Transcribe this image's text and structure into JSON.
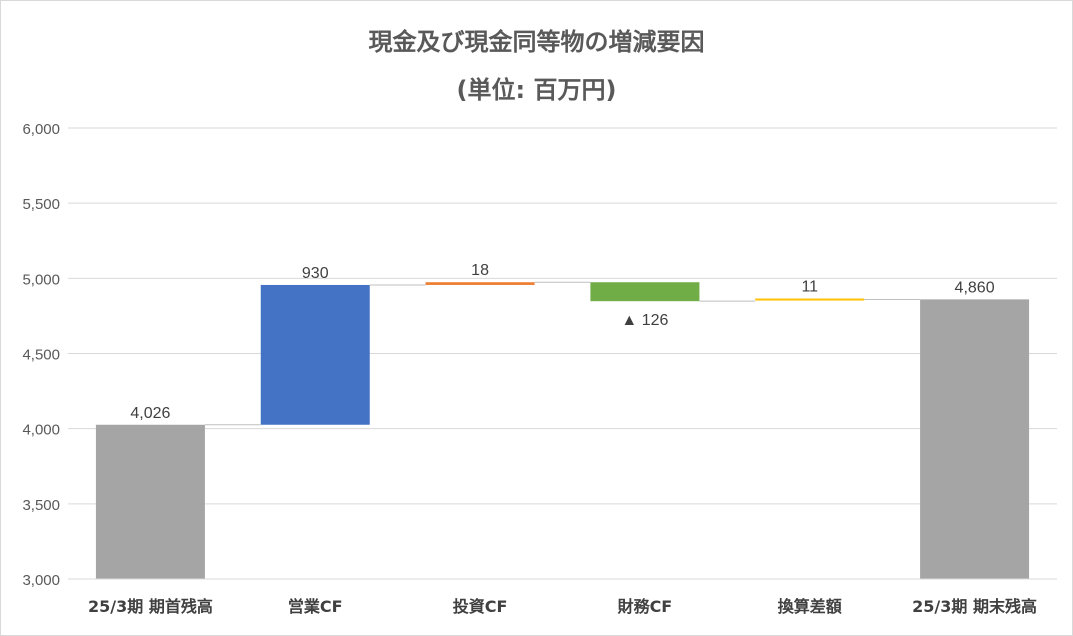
{
  "title": "現金及び現金同等物の増減要因",
  "subtitle": "(単位: 百万円)",
  "chart_data": {
    "type": "bar",
    "subtype": "waterfall",
    "title": "現金及び現金同等物の増減要因",
    "subtitle": "(単位: 百万円)",
    "categories": [
      "25/3期 期首残高",
      "営業CF",
      "投資CF",
      "財務CF",
      "換算差額",
      "25/3期 期末残高"
    ],
    "steps": [
      {
        "category": "25/3期 期首残高",
        "kind": "total",
        "base": 0,
        "end": 4026,
        "label": "4,026",
        "color": "#a5a5a5"
      },
      {
        "category": "営業CF",
        "kind": "increase",
        "base": 4026,
        "end": 4956,
        "label": "930",
        "color": "#4472c4"
      },
      {
        "category": "投資CF",
        "kind": "increase",
        "base": 4956,
        "end": 4974,
        "label": "18",
        "color": "#ed7d31"
      },
      {
        "category": "財務CF",
        "kind": "decrease",
        "base": 4974,
        "end": 4848,
        "label": "▲ 126",
        "color": "#70ad47"
      },
      {
        "category": "換算差額",
        "kind": "increase",
        "base": 4848,
        "end": 4859,
        "label": "11",
        "color": "#ffc000"
      },
      {
        "category": "25/3期 期末残高",
        "kind": "total",
        "base": 0,
        "end": 4860,
        "label": "4,860",
        "color": "#a5a5a5"
      }
    ],
    "yticks": [
      "3,000",
      "3,500",
      "4,000",
      "4,500",
      "5,000",
      "5,500",
      "6,000"
    ],
    "ylim": [
      3000,
      6000
    ],
    "grid": true,
    "legend": "none"
  }
}
